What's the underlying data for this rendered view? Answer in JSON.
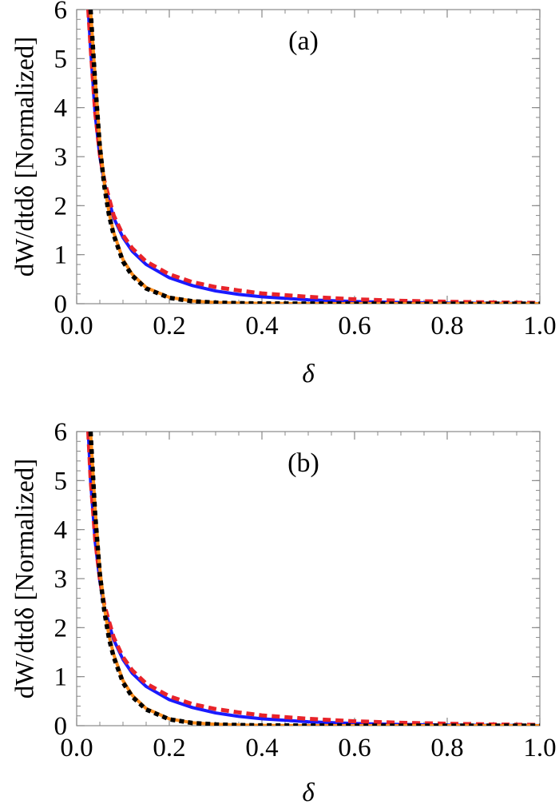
{
  "colors": {
    "blue": "#1a1aff",
    "red": "#e8232a",
    "orange": "#ff8c1a",
    "black": "#000000",
    "frame": "#888888"
  },
  "chart_data": [
    {
      "type": "line",
      "title": "(a)",
      "xlabel": "δ",
      "ylabel": "dW/dtdδ [Normalized]",
      "xlim": [
        0,
        1.0
      ],
      "ylim": [
        0,
        6
      ],
      "xticks": [
        "0.0",
        "0.2",
        "0.4",
        "0.6",
        "0.8",
        "1.0"
      ],
      "yticks": [
        "0",
        "1",
        "2",
        "3",
        "4",
        "5",
        "6"
      ],
      "grid": false,
      "series": [
        {
          "color": "blue",
          "style": "solid",
          "x": [
            0.025,
            0.03,
            0.04,
            0.05,
            0.06,
            0.08,
            0.1,
            0.12,
            0.15,
            0.2,
            0.25,
            0.3,
            0.35,
            0.4,
            0.5,
            0.6,
            0.7,
            0.8,
            0.9,
            1.0
          ],
          "y": [
            6,
            5.2,
            3.85,
            3.0,
            2.45,
            1.75,
            1.35,
            1.07,
            0.8,
            0.53,
            0.37,
            0.26,
            0.19,
            0.14,
            0.08,
            0.045,
            0.025,
            0.013,
            0.007,
            0.003
          ]
        },
        {
          "color": "red",
          "style": "dashed",
          "x": [
            0.025,
            0.03,
            0.04,
            0.05,
            0.06,
            0.08,
            0.1,
            0.12,
            0.15,
            0.2,
            0.25,
            0.3,
            0.35,
            0.4,
            0.5,
            0.6,
            0.7,
            0.8,
            0.9,
            1.0
          ],
          "y": [
            6,
            5.25,
            3.9,
            3.05,
            2.5,
            1.8,
            1.4,
            1.13,
            0.86,
            0.6,
            0.44,
            0.34,
            0.27,
            0.21,
            0.14,
            0.09,
            0.06,
            0.04,
            0.025,
            0.015
          ]
        },
        {
          "color": "orange",
          "style": "solid",
          "x": [
            0.03,
            0.04,
            0.05,
            0.06,
            0.07,
            0.08,
            0.1,
            0.12,
            0.15,
            0.2,
            0.25,
            0.3,
            0.35,
            0.4,
            0.5,
            0.6,
            0.8,
            1.0
          ],
          "y": [
            6,
            4.6,
            3.3,
            2.45,
            1.85,
            1.45,
            0.9,
            0.6,
            0.33,
            0.13,
            0.055,
            0.025,
            0.012,
            0.006,
            0.002,
            0.001,
            0.0,
            0.0
          ]
        },
        {
          "color": "black",
          "style": "dotted",
          "x": [
            0.03,
            0.04,
            0.05,
            0.06,
            0.07,
            0.08,
            0.1,
            0.12,
            0.15,
            0.2,
            0.25,
            0.3,
            0.35,
            0.4,
            0.5,
            0.6,
            0.8,
            1.0
          ],
          "y": [
            6,
            4.5,
            3.2,
            2.38,
            1.8,
            1.4,
            0.86,
            0.57,
            0.31,
            0.12,
            0.05,
            0.022,
            0.01,
            0.005,
            0.002,
            0.001,
            0.0,
            0.0
          ]
        }
      ]
    },
    {
      "type": "line",
      "title": "(b)",
      "xlabel": "δ",
      "ylabel": "dW/dtdδ [Normalized]",
      "xlim": [
        0,
        1.0
      ],
      "ylim": [
        0,
        6
      ],
      "xticks": [
        "0.0",
        "0.2",
        "0.4",
        "0.6",
        "0.8",
        "1.0"
      ],
      "yticks": [
        "0",
        "1",
        "2",
        "3",
        "4",
        "5",
        "6"
      ],
      "grid": false,
      "series": [
        {
          "color": "blue",
          "style": "solid",
          "x": [
            0.025,
            0.03,
            0.04,
            0.05,
            0.06,
            0.08,
            0.1,
            0.12,
            0.15,
            0.2,
            0.25,
            0.3,
            0.35,
            0.4,
            0.5,
            0.6,
            0.7,
            0.8,
            0.9,
            1.0
          ],
          "y": [
            6,
            5.0,
            3.75,
            2.95,
            2.4,
            1.75,
            1.35,
            1.07,
            0.8,
            0.53,
            0.37,
            0.26,
            0.19,
            0.14,
            0.08,
            0.045,
            0.025,
            0.013,
            0.007,
            0.003
          ]
        },
        {
          "color": "red",
          "style": "dashed",
          "x": [
            0.025,
            0.03,
            0.04,
            0.05,
            0.06,
            0.08,
            0.1,
            0.12,
            0.15,
            0.2,
            0.25,
            0.3,
            0.35,
            0.4,
            0.5,
            0.6,
            0.7,
            0.8,
            0.9,
            1.0
          ],
          "y": [
            6,
            5.05,
            3.8,
            3.0,
            2.45,
            1.8,
            1.4,
            1.13,
            0.86,
            0.6,
            0.44,
            0.34,
            0.27,
            0.21,
            0.14,
            0.09,
            0.06,
            0.04,
            0.025,
            0.015
          ]
        },
        {
          "color": "orange",
          "style": "solid",
          "x": [
            0.03,
            0.04,
            0.05,
            0.06,
            0.07,
            0.08,
            0.1,
            0.12,
            0.15,
            0.2,
            0.25,
            0.3,
            0.35,
            0.4,
            0.5,
            0.6,
            0.8,
            1.0
          ],
          "y": [
            6,
            4.4,
            3.2,
            2.4,
            1.83,
            1.45,
            0.92,
            0.62,
            0.35,
            0.14,
            0.06,
            0.028,
            0.014,
            0.007,
            0.002,
            0.001,
            0.0,
            0.0
          ]
        },
        {
          "color": "black",
          "style": "dotted",
          "x": [
            0.03,
            0.04,
            0.05,
            0.06,
            0.07,
            0.08,
            0.1,
            0.12,
            0.15,
            0.2,
            0.25,
            0.3,
            0.35,
            0.4,
            0.5,
            0.6,
            0.8,
            1.0
          ],
          "y": [
            6,
            4.3,
            3.1,
            2.32,
            1.77,
            1.4,
            0.88,
            0.59,
            0.33,
            0.13,
            0.055,
            0.025,
            0.012,
            0.006,
            0.002,
            0.001,
            0.0,
            0.0
          ]
        }
      ]
    }
  ]
}
